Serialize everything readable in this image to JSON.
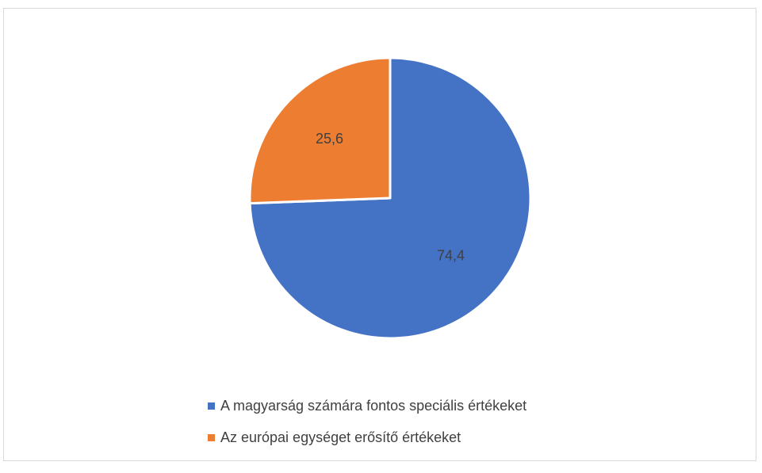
{
  "chart_data": {
    "type": "pie",
    "title": "",
    "categories": [
      "A magyarság számára fontos speciális értékeket",
      "Az európai egységet erősítő értékeket"
    ],
    "values": [
      74.4,
      25.6
    ],
    "value_labels": [
      "74,4",
      "25,6"
    ],
    "colors": [
      "#4472C4",
      "#ED7D31"
    ],
    "legend_position": "bottom"
  }
}
